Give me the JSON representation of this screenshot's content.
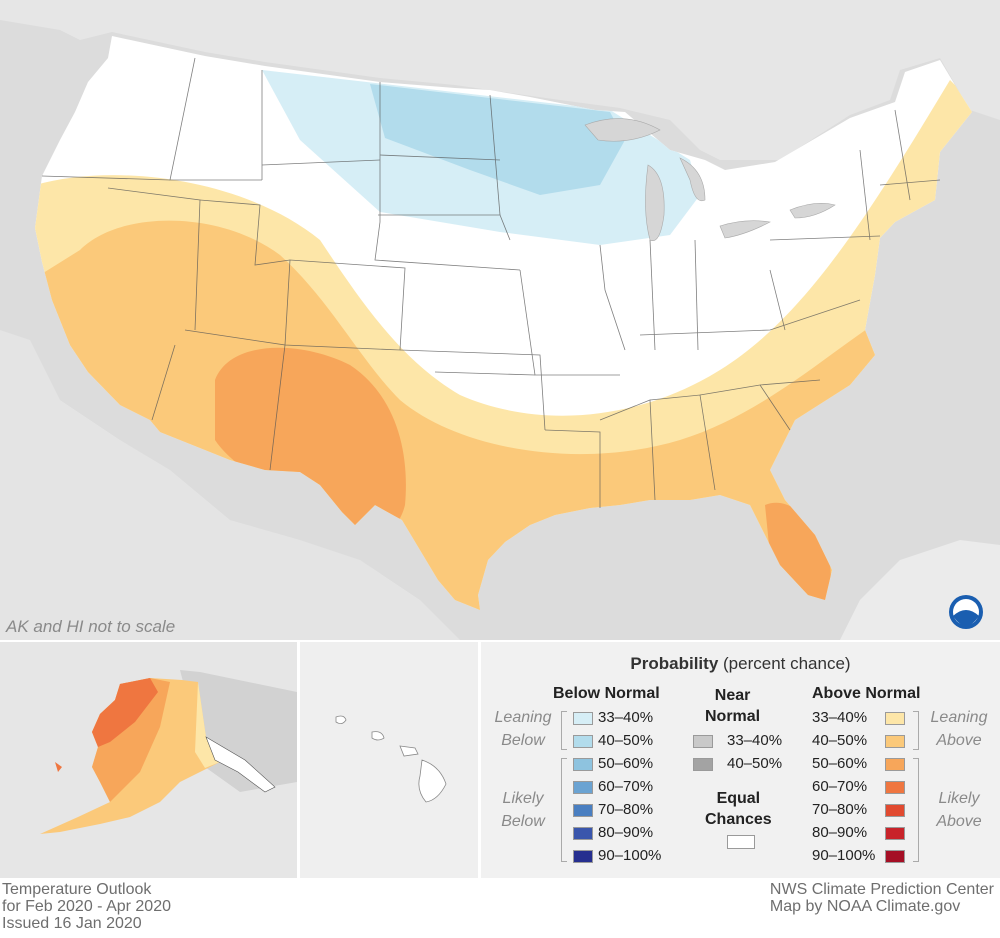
{
  "map": {
    "scale_note": "AK and HI not to scale",
    "logo_text": "NOAA"
  },
  "legend": {
    "title_bold": "Probability",
    "title_rest": " (percent chance)",
    "below_normal": {
      "heading": "Below Normal",
      "leaning_label": [
        "Leaning",
        "Below"
      ],
      "likely_label": [
        "Likely",
        "Below"
      ],
      "items": [
        {
          "label": "33–40%",
          "color": "#d6eef6"
        },
        {
          "label": "40–50%",
          "color": "#b2dcec"
        },
        {
          "label": "50–60%",
          "color": "#8ec3df"
        },
        {
          "label": "60–70%",
          "color": "#6ba3d2"
        },
        {
          "label": "70–80%",
          "color": "#4a7fc1"
        },
        {
          "label": "80–90%",
          "color": "#3a56ac"
        },
        {
          "label": "90–100%",
          "color": "#262f8f"
        }
      ]
    },
    "near_normal": {
      "heading": [
        "Near",
        "Normal"
      ],
      "items": [
        {
          "label": "33–40%",
          "color": "#c9c9c9"
        },
        {
          "label": "40–50%",
          "color": "#a3a3a3"
        }
      ]
    },
    "equal_chances": {
      "heading": [
        "Equal",
        "Chances"
      ],
      "color": "#ffffff"
    },
    "above_normal": {
      "heading": "Above Normal",
      "leaning_label": [
        "Leaning",
        "Above"
      ],
      "likely_label": [
        "Likely",
        "Above"
      ],
      "items": [
        {
          "label": "33–40%",
          "color": "#fde6a8"
        },
        {
          "label": "40–50%",
          "color": "#fbc97a"
        },
        {
          "label": "50–60%",
          "color": "#f7a65a"
        },
        {
          "label": "60–70%",
          "color": "#ef7640"
        },
        {
          "label": "70–80%",
          "color": "#e14a30"
        },
        {
          "label": "80–90%",
          "color": "#c8232a"
        },
        {
          "label": "90–100%",
          "color": "#a50f25"
        }
      ]
    }
  },
  "footer": {
    "left": [
      "Temperature Outlook",
      "for Feb 2020 - Apr 2020",
      "Issued 16 Jan 2020"
    ],
    "right": [
      "NWS Climate Prediction Center",
      "Map by NOAA Climate.gov"
    ]
  }
}
